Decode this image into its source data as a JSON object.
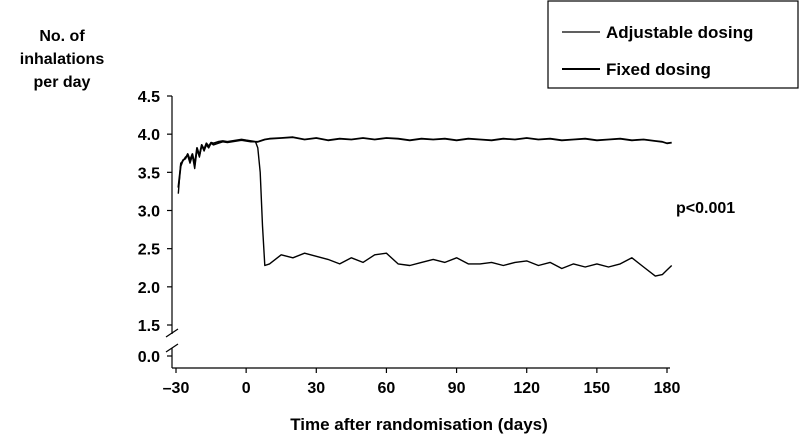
{
  "chart_data": {
    "type": "line",
    "ylabel": [
      "No. of",
      "inhalations",
      "per day"
    ],
    "xlabel": "Time after randomisation (days)",
    "x_ticks": [
      -30,
      0,
      30,
      60,
      90,
      120,
      150,
      180
    ],
    "x_tick_labels": [
      "–30",
      "0",
      "30",
      "60",
      "90",
      "120",
      "150",
      "180"
    ],
    "y_ticks": [
      0.0,
      1.5,
      2.0,
      2.5,
      3.0,
      3.5,
      4.0,
      4.5
    ],
    "y_tick_labels": [
      "0.0",
      "1.5",
      "2.0",
      "2.5",
      "3.0",
      "3.5",
      "4.0",
      "4.5"
    ],
    "xlim": [
      -30,
      183
    ],
    "ylim": [
      0.0,
      4.5
    ],
    "y_axis_break": [
      0.0,
      1.5
    ],
    "legend_position": "top-right",
    "annotation": "p<0.001",
    "series": [
      {
        "name": "Adjustable dosing",
        "x": [
          -29,
          -28,
          -27,
          -26,
          -25,
          -24,
          -23,
          -22,
          -21,
          -20,
          -19,
          -18,
          -17,
          -16,
          -15,
          -14,
          -12,
          -10,
          -8,
          -6,
          -4,
          -2,
          0,
          2,
          4,
          5,
          6,
          7,
          8,
          10,
          15,
          20,
          25,
          30,
          35,
          40,
          45,
          50,
          55,
          60,
          65,
          70,
          75,
          80,
          85,
          90,
          95,
          100,
          105,
          110,
          115,
          120,
          125,
          130,
          135,
          140,
          145,
          150,
          155,
          160,
          165,
          170,
          175,
          178,
          180,
          182
        ],
        "values": [
          3.22,
          3.62,
          3.65,
          3.7,
          3.72,
          3.62,
          3.72,
          3.55,
          3.8,
          3.7,
          3.85,
          3.78,
          3.86,
          3.82,
          3.88,
          3.86,
          3.88,
          3.9,
          3.89,
          3.9,
          3.91,
          3.92,
          3.91,
          3.9,
          3.9,
          3.82,
          3.5,
          2.8,
          2.28,
          2.3,
          2.42,
          2.38,
          2.44,
          2.4,
          2.36,
          2.3,
          2.38,
          2.32,
          2.42,
          2.44,
          2.3,
          2.28,
          2.32,
          2.36,
          2.32,
          2.38,
          2.3,
          2.3,
          2.32,
          2.28,
          2.32,
          2.34,
          2.28,
          2.32,
          2.24,
          2.3,
          2.26,
          2.3,
          2.26,
          2.3,
          2.38,
          2.26,
          2.14,
          2.16,
          2.22,
          2.28
        ]
      },
      {
        "name": "Fixed dosing",
        "x": [
          -29,
          -28,
          -27,
          -26,
          -25,
          -24,
          -23,
          -22,
          -21,
          -20,
          -19,
          -18,
          -17,
          -16,
          -15,
          -14,
          -12,
          -10,
          -8,
          -6,
          -4,
          -2,
          0,
          2,
          4,
          5,
          6,
          8,
          10,
          15,
          20,
          25,
          30,
          35,
          40,
          45,
          50,
          55,
          60,
          65,
          70,
          75,
          80,
          85,
          90,
          95,
          100,
          105,
          110,
          115,
          120,
          125,
          130,
          135,
          140,
          145,
          150,
          155,
          160,
          165,
          170,
          175,
          178,
          180,
          182
        ],
        "values": [
          3.3,
          3.58,
          3.66,
          3.68,
          3.74,
          3.66,
          3.74,
          3.6,
          3.82,
          3.72,
          3.86,
          3.8,
          3.88,
          3.84,
          3.89,
          3.88,
          3.9,
          3.91,
          3.9,
          3.91,
          3.92,
          3.93,
          3.92,
          3.91,
          3.9,
          3.9,
          3.91,
          3.93,
          3.94,
          3.95,
          3.96,
          3.93,
          3.95,
          3.92,
          3.94,
          3.93,
          3.95,
          3.93,
          3.95,
          3.94,
          3.92,
          3.94,
          3.93,
          3.94,
          3.92,
          3.94,
          3.93,
          3.92,
          3.94,
          3.93,
          3.95,
          3.93,
          3.94,
          3.92,
          3.93,
          3.94,
          3.92,
          3.93,
          3.94,
          3.92,
          3.93,
          3.91,
          3.9,
          3.88,
          3.89
        ]
      }
    ]
  }
}
